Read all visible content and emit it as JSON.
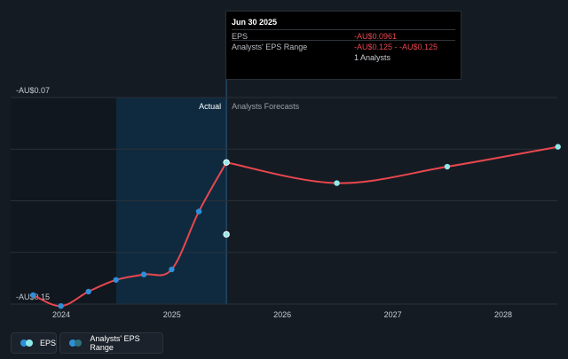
{
  "tooltip": {
    "date": "Jun 30 2025",
    "rows": [
      {
        "label": "EPS",
        "value": "-AU$0.0961"
      },
      {
        "label": "Analysts' EPS Range",
        "value": "-AU$0.125 - -AU$0.125"
      }
    ],
    "analysts": "1 Analysts"
  },
  "legend": {
    "eps_label": "EPS",
    "range_label": "Analysts' EPS Range"
  },
  "colors": {
    "background": "#151b23",
    "line": "#e8474f",
    "actual_marker": "#2e8fd9",
    "forecast_marker": "#8ee8e8",
    "highlight": "#0f2a3f"
  },
  "chart_data": {
    "type": "line",
    "title": "",
    "xlabel": "",
    "ylabel": "",
    "region_labels": {
      "actual": "Actual",
      "forecast": "Analysts Forecasts"
    },
    "x_ticks": [
      "2024",
      "2025",
      "2026",
      "2027",
      "2028"
    ],
    "y_ticks": [
      "-AU$0.07",
      "-AU$0.15"
    ],
    "ylim": [
      -0.153,
      -0.07
    ],
    "grid": true,
    "series": [
      {
        "name": "EPS",
        "segment": "actual",
        "points": [
          {
            "x": "2023-09-30",
            "y": -0.1494
          },
          {
            "x": "2023-12-31",
            "y": -0.1538
          },
          {
            "x": "2024-03-31",
            "y": -0.148
          },
          {
            "x": "2024-06-30",
            "y": -0.1433
          },
          {
            "x": "2024-09-30",
            "y": -0.1411
          },
          {
            "x": "2024-12-31",
            "y": -0.1391
          },
          {
            "x": "2025-03-31",
            "y": -0.1158
          },
          {
            "x": "2025-06-30",
            "y": -0.0961
          }
        ]
      },
      {
        "name": "EPS",
        "segment": "forecast",
        "points": [
          {
            "x": "2025-06-30",
            "y": -0.0961
          },
          {
            "x": "2026-06-30",
            "y": -0.1044
          },
          {
            "x": "2027-06-30",
            "y": -0.0978
          },
          {
            "x": "2028-06-30",
            "y": -0.0898
          }
        ]
      }
    ],
    "range_points": [
      {
        "x": "2025-06-30",
        "low": -0.125,
        "high": -0.125
      }
    ]
  }
}
